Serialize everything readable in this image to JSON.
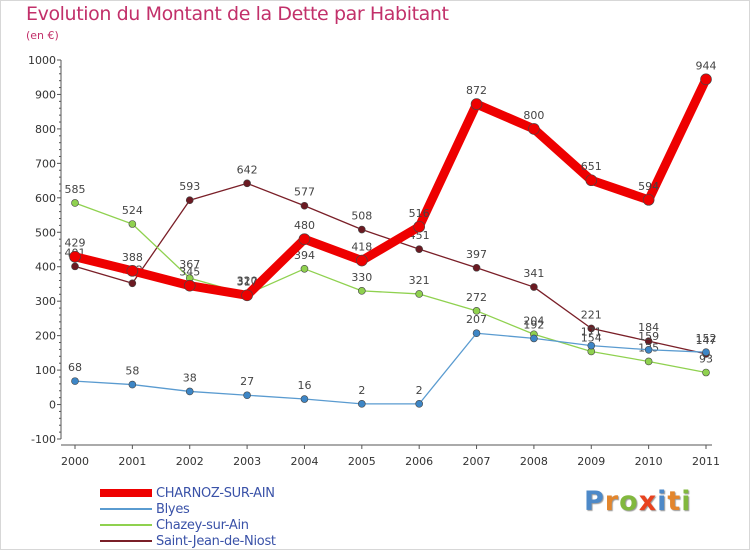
{
  "title": "Evolution du Montant de la Dette par Habitant",
  "subtitle": "(en €)",
  "logo": {
    "text": "Proxiti",
    "letters": [
      {
        "ch": "P",
        "color": "#4d89c8"
      },
      {
        "ch": "r",
        "color": "#e3862d"
      },
      {
        "ch": "o",
        "color": "#82b83e"
      },
      {
        "ch": "x",
        "color": "#e8431f"
      },
      {
        "ch": "i",
        "color": "#4d89c8"
      },
      {
        "ch": "t",
        "color": "#e3862d"
      },
      {
        "ch": "i",
        "color": "#82b83e"
      }
    ]
  },
  "chart_data": {
    "type": "line",
    "title": "Evolution du Montant de la Dette par Habitant",
    "ylabel": "(en €)",
    "xlabel": "",
    "ylim": [
      -100,
      1000
    ],
    "yticks": [
      -100,
      0,
      100,
      200,
      300,
      400,
      500,
      600,
      700,
      800,
      900,
      1000
    ],
    "categories": [
      "2000",
      "2001",
      "2002",
      "2003",
      "2004",
      "2005",
      "2006",
      "2007",
      "2008",
      "2009",
      "2010",
      "2011"
    ],
    "legend_position": "bottom-left",
    "series": [
      {
        "name": "Saint-Jean-de-Niost",
        "color": "#7a1f28",
        "marker": "#6b1a22",
        "width": 1.3,
        "values": [
          401,
          352,
          593,
          642,
          577,
          508,
          451,
          397,
          341,
          221,
          184,
          147
        ]
      },
      {
        "name": "Chazey-sur-Ain",
        "color": "#8fd14f",
        "marker": "#8fd14f",
        "width": 1.3,
        "values": [
          585,
          524,
          367,
          320,
          394,
          330,
          321,
          272,
          204,
          154,
          125,
          93
        ]
      },
      {
        "name": "Blyes",
        "color": "#5a9bd0",
        "marker": "#3d86c6",
        "width": 1.3,
        "values": [
          68,
          58,
          38,
          27,
          16,
          2,
          2,
          207,
          192,
          171,
          159,
          152
        ]
      },
      {
        "name": "CHARNOZ-SUR-AIN",
        "color": "#ee0000",
        "marker": "#ee0000",
        "width": 9,
        "values": [
          429,
          388,
          345,
          317,
          480,
          418,
          516,
          872,
          800,
          651,
          594,
          944
        ]
      }
    ]
  },
  "legend": [
    {
      "name": "CHARNOZ-SUR-AIN",
      "color": "#ee0000",
      "thickness": 8
    },
    {
      "name": "Blyes",
      "color": "#5a9bd0",
      "thickness": 2
    },
    {
      "name": "Chazey-sur-Ain",
      "color": "#8fd14f",
      "thickness": 2
    },
    {
      "name": "Saint-Jean-de-Niost",
      "color": "#7a1f28",
      "thickness": 2
    }
  ]
}
